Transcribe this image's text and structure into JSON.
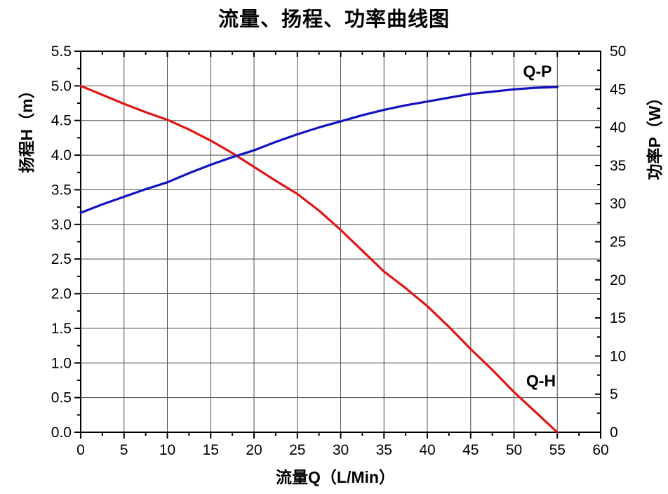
{
  "chart_data": {
    "type": "line",
    "title": "流量、扬程、功率曲线图",
    "grid": true,
    "legend_position": "none",
    "x_axis": {
      "label": "流量Q（L/Min）",
      "min": 0,
      "max": 60,
      "major_tick": 5,
      "minor_tick": 2.5,
      "tick_labels": [
        "0",
        "5",
        "10",
        "15",
        "20",
        "25",
        "30",
        "35",
        "40",
        "45",
        "50",
        "55",
        "60"
      ]
    },
    "y_left_axis": {
      "label": "扬程H（m）",
      "min": 0,
      "max": 5.5,
      "major_tick": 0.5,
      "minor_tick": 0.25,
      "tick_labels": [
        "0.0",
        "0.5",
        "1.0",
        "1.5",
        "2.0",
        "2.5",
        "3.0",
        "3.5",
        "4.0",
        "4.5",
        "5.0",
        "5.5"
      ]
    },
    "y_right_axis": {
      "label": "功率P（W）",
      "min": 0,
      "max": 50,
      "major_tick": 5,
      "minor_tick": 2.5,
      "tick_labels": [
        "0",
        "5",
        "10",
        "15",
        "20",
        "25",
        "30",
        "35",
        "40",
        "45",
        "50"
      ]
    },
    "series": [
      {
        "name": "Q-H",
        "axis": "left",
        "color": "#e01515",
        "x": [
          0,
          2.5,
          5,
          7.5,
          10,
          12.5,
          15,
          17.5,
          20,
          22.5,
          25,
          27.5,
          30,
          32.5,
          35,
          37.5,
          40,
          42.5,
          45,
          47.5,
          50,
          52.5,
          55
        ],
        "y": [
          5.0,
          4.87,
          4.74,
          4.62,
          4.51,
          4.37,
          4.21,
          4.03,
          3.83,
          3.63,
          3.44,
          3.2,
          2.92,
          2.62,
          2.32,
          2.08,
          1.82,
          1.52,
          1.2,
          0.9,
          0.58,
          0.29,
          0.0
        ]
      },
      {
        "name": "Q-P",
        "axis": "right",
        "color": "#1212c0",
        "x": [
          0,
          2.5,
          5,
          7.5,
          10,
          12.5,
          15,
          17.5,
          20,
          22.5,
          25,
          27.5,
          30,
          32.5,
          35,
          37.5,
          40,
          42.5,
          45,
          47.5,
          50,
          52.5,
          55
        ],
        "y": [
          28.8,
          29.9,
          30.9,
          31.9,
          32.8,
          34.0,
          35.1,
          36.1,
          37.0,
          38.1,
          39.1,
          40.0,
          40.8,
          41.6,
          42.3,
          42.9,
          43.4,
          43.9,
          44.4,
          44.7,
          45.0,
          45.2,
          45.3
        ]
      }
    ],
    "annotations": [
      {
        "text": "Q-P",
        "q": 52.7,
        "value": 47.3,
        "axis": "right"
      },
      {
        "text": "Q-H",
        "q": 53.1,
        "value": 0.74,
        "axis": "left"
      }
    ]
  },
  "colors": {
    "axis": "#000000",
    "grid": "#4d4d4d",
    "background": "#ffffff",
    "text": "#000000"
  }
}
